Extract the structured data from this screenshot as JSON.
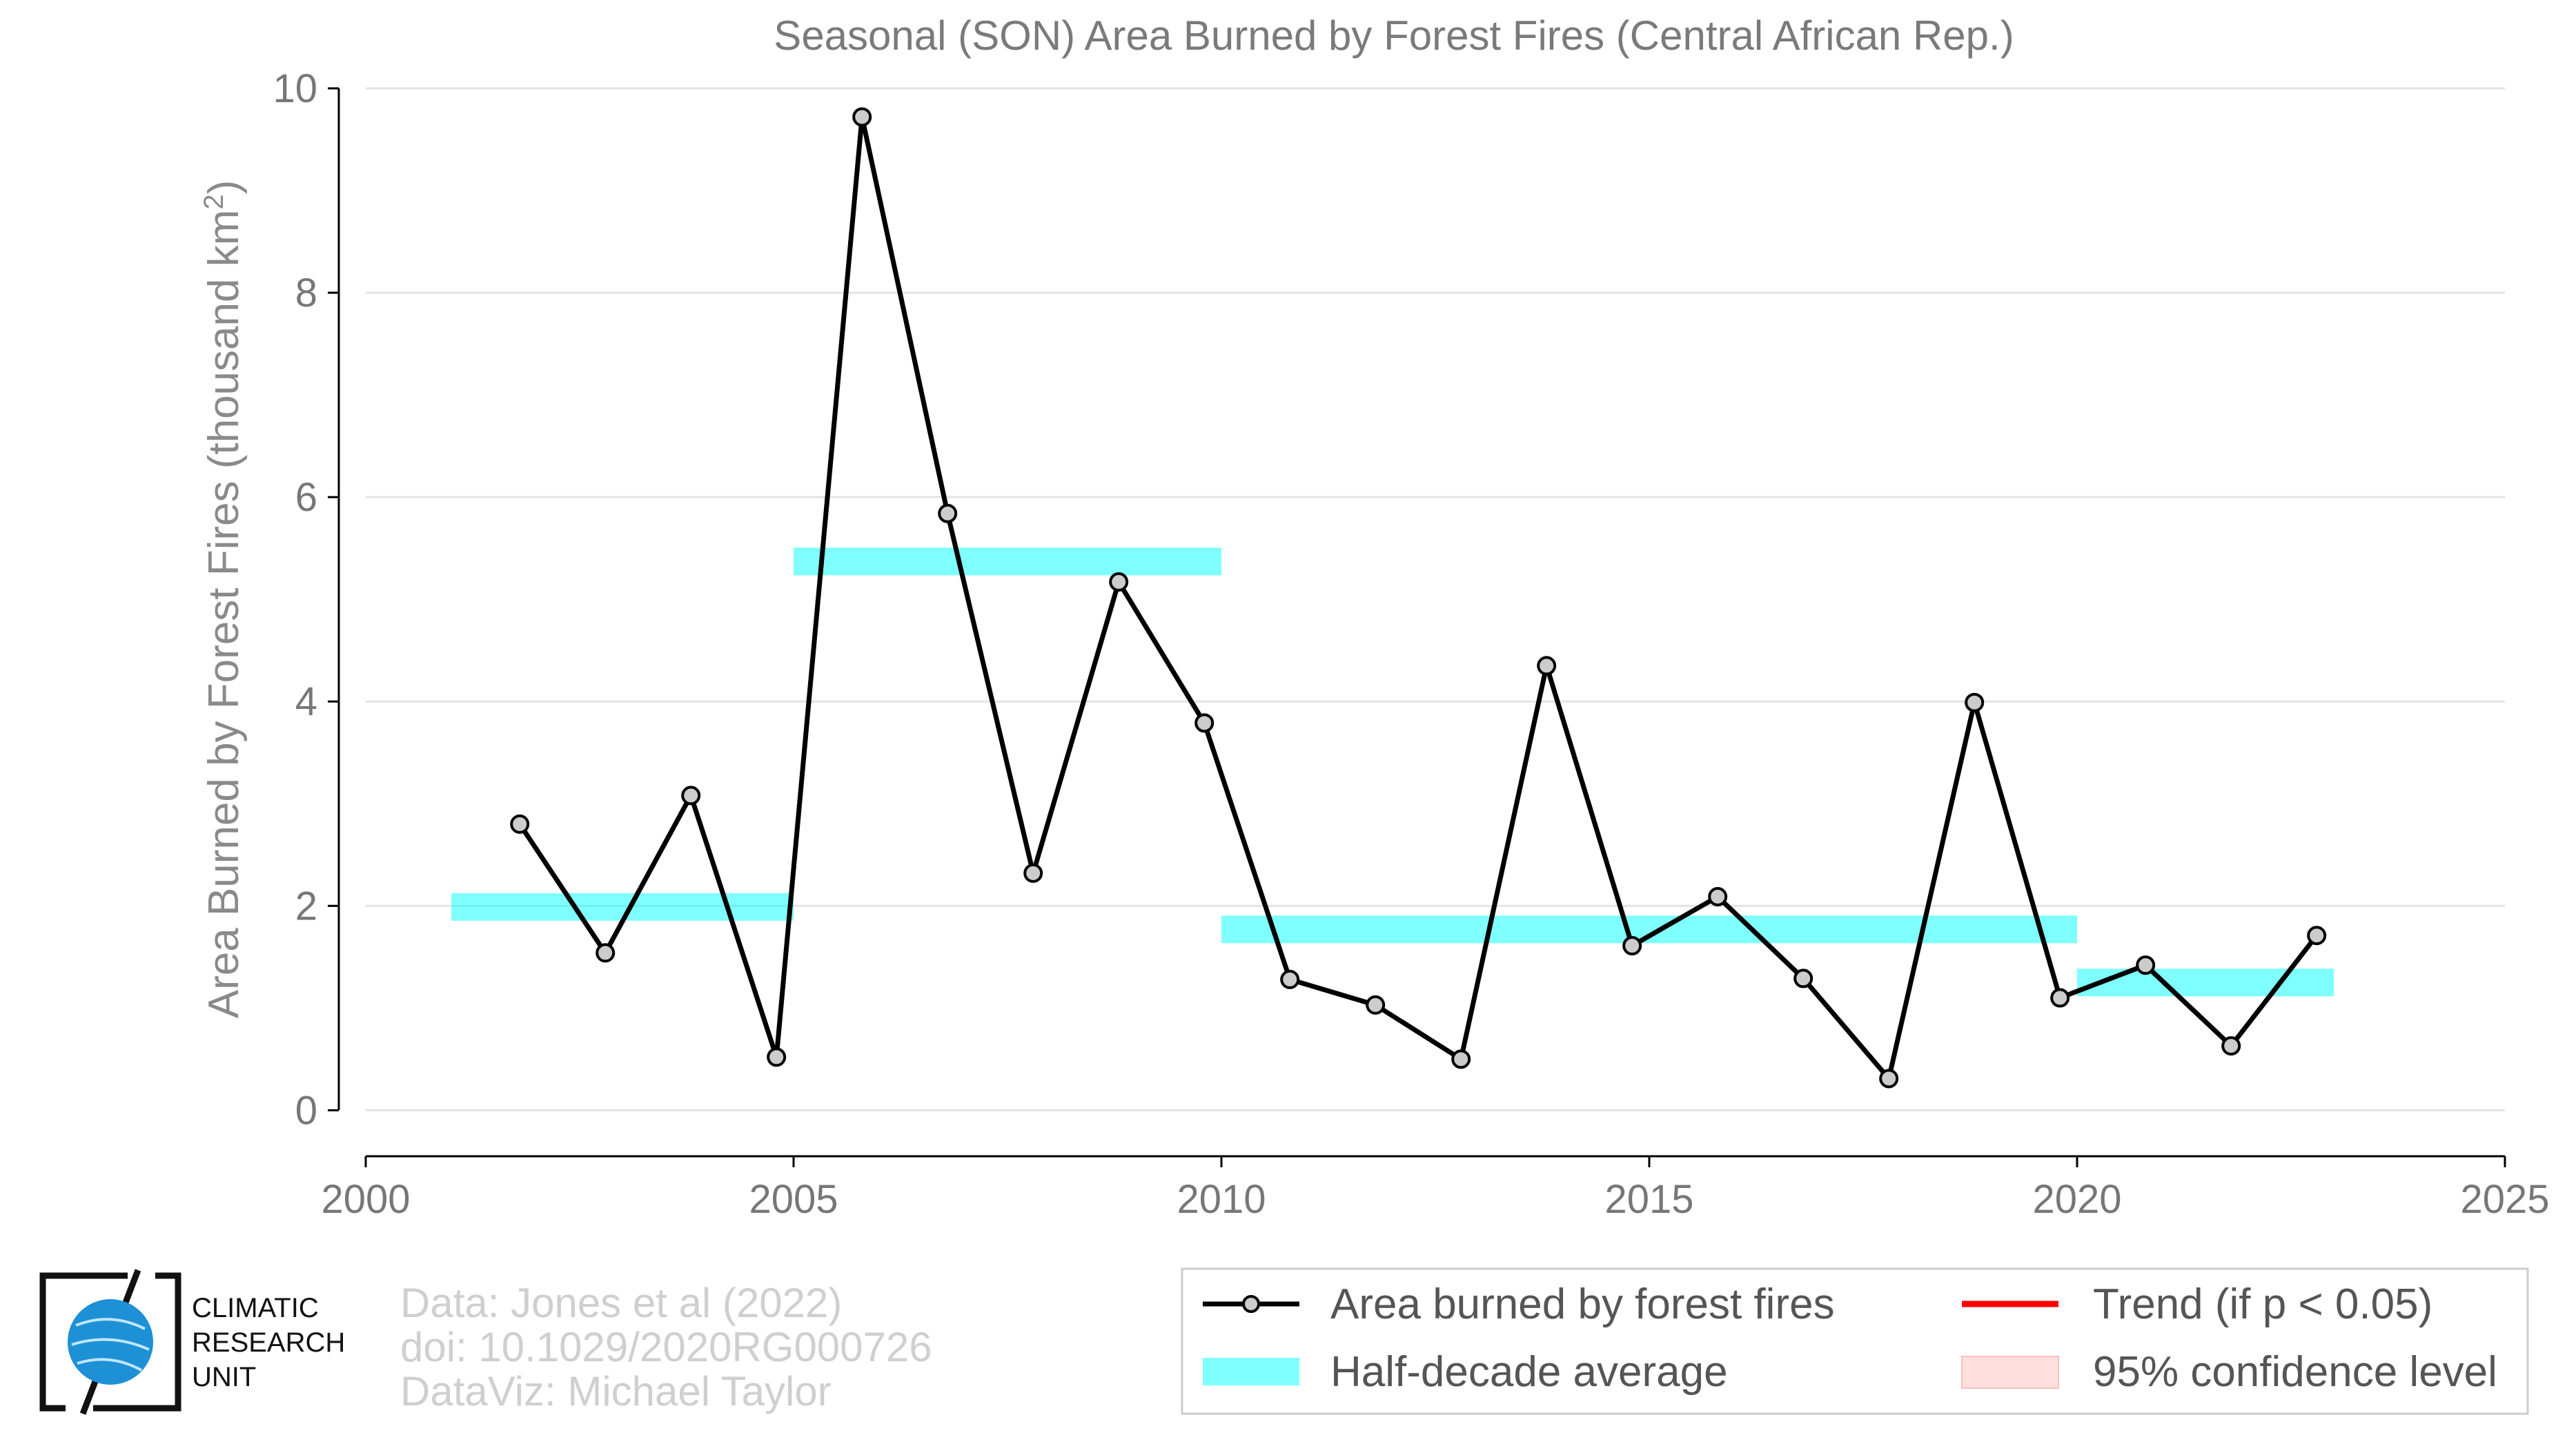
{
  "chart_data": {
    "type": "line",
    "title": "Seasonal (SON) Area Burned by Forest Fires (Central African Rep.)",
    "xlabel": "",
    "ylabel": "Area Burned by Forest Fires (thousand km",
    "ylabel_superscript": "2",
    "ylabel_suffix": ")",
    "xlim": [
      2000,
      2025
    ],
    "ylim": [
      -0.45,
      10
    ],
    "xticks": [
      "2000",
      "2005",
      "2010",
      "2015",
      "2020",
      "2025"
    ],
    "yticks": [
      "0",
      "2",
      "4",
      "6",
      "8",
      "10"
    ],
    "grid": "horizontal",
    "legend_placement": "bottom-right",
    "series": [
      {
        "name": "Area burned by forest fires",
        "x": [
          2001.8,
          2002.8,
          2003.8,
          2004.8,
          2005.8,
          2006.8,
          2007.8,
          2008.8,
          2009.8,
          2010.8,
          2011.8,
          2012.8,
          2013.8,
          2014.8,
          2015.8,
          2016.8,
          2017.8,
          2018.8,
          2019.8,
          2020.8,
          2021.8,
          2022.8
        ],
        "values": [
          2.8,
          1.54,
          3.08,
          0.52,
          9.72,
          5.84,
          2.32,
          5.17,
          3.79,
          1.28,
          1.03,
          0.5,
          4.35,
          1.61,
          2.09,
          1.29,
          0.31,
          3.99,
          1.1,
          1.42,
          0.63,
          1.71
        ],
        "color": "#000000"
      }
    ],
    "half_decade_averages": {
      "name": "Half-decade average",
      "color": "#00ffff",
      "segments": [
        {
          "x_start": 2001,
          "x_end": 2005,
          "value": 1.99
        },
        {
          "x_start": 2005,
          "x_end": 2010,
          "value": 5.37
        },
        {
          "x_start": 2010,
          "x_end": 2020,
          "value": 1.77
        },
        {
          "x_start": 2020,
          "x_end": 2023,
          "value": 1.25
        }
      ]
    },
    "trend": {
      "name": "Trend (if p < 0.05)",
      "color": "#ff0000"
    },
    "confidence": {
      "name": "95% confidence level",
      "color": "#ffcccc"
    }
  },
  "credits": {
    "line1": "Data: Jones et al (2022)",
    "line2": "doi: 10.1029/2020RG000726",
    "line3": "DataViz: Michael Taylor"
  },
  "logo": {
    "line1": "CLIMATIC",
    "line2": "RESEARCH",
    "line3": "UNIT",
    "globe_color": "#1e90d6"
  }
}
